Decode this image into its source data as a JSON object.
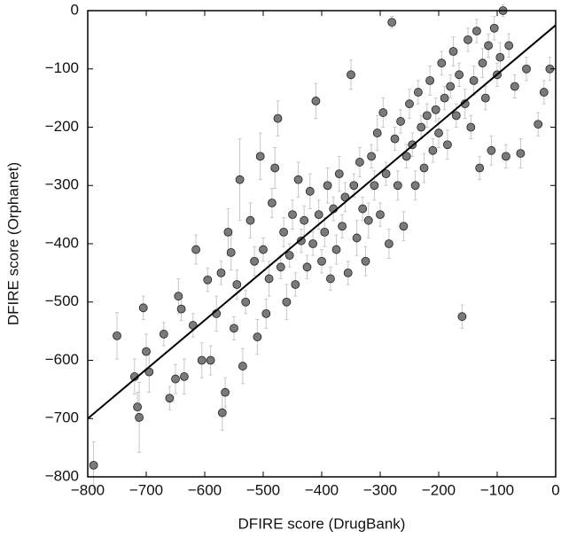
{
  "chart_data": {
    "type": "scatter",
    "x_label": "DFIRE score (DrugBank)",
    "y_label": "DFIRE score (Orphanet)",
    "xlim": [
      -800,
      0
    ],
    "ylim": [
      -800,
      0
    ],
    "xticks": [
      {
        "value": -800,
        "label": "−800"
      },
      {
        "value": -700,
        "label": "−700"
      },
      {
        "value": -600,
        "label": "−600"
      },
      {
        "value": -500,
        "label": "−500"
      },
      {
        "value": -400,
        "label": "−400"
      },
      {
        "value": -300,
        "label": "−300"
      },
      {
        "value": -200,
        "label": "−200"
      },
      {
        "value": -100,
        "label": "−100"
      },
      0
    ],
    "yticks": [
      {
        "value": -800,
        "label": "−800"
      },
      {
        "value": -700,
        "label": "−700"
      },
      {
        "value": -600,
        "label": "−600"
      },
      {
        "value": -500,
        "label": "−500"
      },
      {
        "value": -400,
        "label": "−400"
      },
      {
        "value": -300,
        "label": "−300"
      },
      {
        "value": -200,
        "label": "−200"
      },
      {
        "value": -100,
        "label": "−100"
      },
      0
    ],
    "color": "#7a7a7a",
    "error_color": "#c8c8c8",
    "fit_color": "#000000",
    "x": [
      -790,
      -750,
      -720,
      -715,
      -712,
      -705,
      -700,
      -695,
      -670,
      -660,
      -650,
      -645,
      -640,
      -635,
      -620,
      -615,
      -605,
      -595,
      -590,
      -580,
      -572,
      -570,
      -565,
      -560,
      -555,
      -550,
      -545,
      -540,
      -535,
      -530,
      -522,
      -515,
      -510,
      -505,
      -500,
      -495,
      -490,
      -485,
      -480,
      -475,
      -470,
      -465,
      -460,
      -455,
      -450,
      -445,
      -440,
      -435,
      -430,
      -425,
      -420,
      -415,
      -410,
      -405,
      -400,
      -395,
      -390,
      -385,
      -380,
      -375,
      -370,
      -365,
      -360,
      -355,
      -350,
      -345,
      -340,
      -335,
      -330,
      -325,
      -320,
      -315,
      -310,
      -305,
      -300,
      -295,
      -290,
      -285,
      -280,
      -275,
      -270,
      -265,
      -260,
      -255,
      -250,
      -245,
      -240,
      -235,
      -230,
      -225,
      -220,
      -215,
      -210,
      -205,
      -200,
      -195,
      -190,
      -185,
      -180,
      -175,
      -170,
      -165,
      -160,
      -155,
      -150,
      -145,
      -140,
      -135,
      -130,
      -125,
      -120,
      -115,
      -110,
      -105,
      -100,
      -95,
      -90,
      -85,
      -80,
      -70,
      -60,
      -50,
      -30,
      -20,
      -10
    ],
    "y": [
      -780,
      -558,
      -628,
      -680,
      -698,
      -510,
      -585,
      -620,
      -555,
      -665,
      -632,
      -490,
      -512,
      -628,
      -540,
      -410,
      -600,
      -462,
      -600,
      -520,
      -450,
      -690,
      -655,
      -380,
      -415,
      -545,
      -470,
      -290,
      -610,
      -500,
      -360,
      -430,
      -560,
      -250,
      -410,
      -520,
      -460,
      -330,
      -270,
      -185,
      -440,
      -380,
      -500,
      -420,
      -350,
      -470,
      -290,
      -395,
      -360,
      -440,
      -310,
      -400,
      -155,
      -350,
      -430,
      -380,
      -300,
      -460,
      -340,
      -410,
      -280,
      -370,
      -320,
      -450,
      -110,
      -300,
      -390,
      -260,
      -340,
      -430,
      -360,
      -250,
      -300,
      -210,
      -350,
      -175,
      -280,
      -400,
      -20,
      -220,
      -300,
      -190,
      -370,
      -250,
      -160,
      -230,
      -300,
      -140,
      -200,
      -270,
      -180,
      -120,
      -240,
      -170,
      -210,
      -90,
      -150,
      -230,
      -130,
      -70,
      -180,
      -110,
      -525,
      -160,
      -50,
      -200,
      -120,
      -35,
      -270,
      -90,
      -150,
      -60,
      -240,
      -30,
      -110,
      -80,
      0,
      -250,
      -60,
      -130,
      -245,
      -100,
      -195,
      -140,
      -100
    ],
    "errors": [
      40,
      40,
      30,
      25,
      60,
      20,
      30,
      35,
      20,
      20,
      25,
      30,
      20,
      30,
      20,
      25,
      30,
      20,
      25,
      30,
      20,
      30,
      25,
      40,
      30,
      20,
      25,
      70,
      30,
      20,
      30,
      25,
      30,
      40,
      20,
      25,
      30,
      25,
      35,
      30,
      20,
      25,
      30,
      20,
      25,
      20,
      30,
      20,
      25,
      20,
      30,
      20,
      30,
      25,
      20,
      25,
      30,
      20,
      20,
      25,
      30,
      20,
      25,
      20,
      25,
      20,
      30,
      25,
      20,
      25,
      30,
      20,
      25,
      30,
      20,
      25,
      20,
      25,
      10,
      20,
      25,
      20,
      25,
      20,
      25,
      20,
      25,
      20,
      20,
      25,
      20,
      25,
      20,
      20,
      25,
      20,
      20,
      25,
      20,
      25,
      20,
      20,
      20,
      25,
      20,
      20,
      25,
      20,
      20,
      25,
      20,
      20,
      25,
      20,
      20,
      25,
      10,
      20,
      20,
      20,
      25,
      20,
      20,
      20,
      20
    ],
    "fit": {
      "x": [
        -800,
        0
      ],
      "y": [
        -700,
        -25
      ]
    }
  }
}
